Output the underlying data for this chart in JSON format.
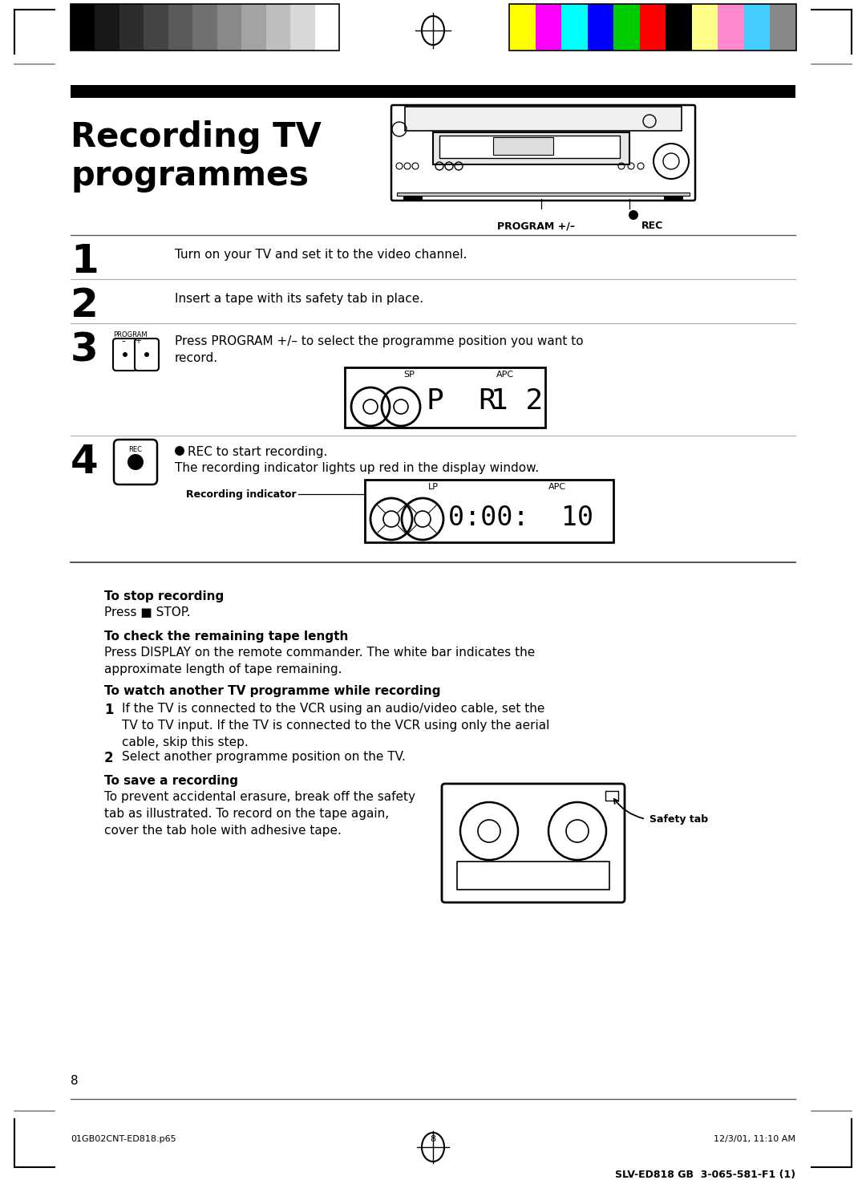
{
  "bg_color": "#ffffff",
  "title_line1": "Recording TV",
  "title_line2": "programmes",
  "step1_text": "Turn on your TV and set it to the video channel.",
  "step2_text": "Insert a tape with its safety tab in place.",
  "step3_text": "Press PROGRAM +/– to select the programme position you want to\nrecord.",
  "step4_text1": "Press ● REC to start recording.",
  "step4_text2": "The recording indicator lights up red in the display window.",
  "recording_indicator_label": "Recording indicator",
  "stop_heading": "To stop recording",
  "stop_body": "Press ■ STOP.",
  "check_heading": "To check the remaining tape length",
  "check_body": "Press DISPLAY on the remote commander. The white bar indicates the\napproximate length of tape remaining.",
  "watch_heading": "To watch another TV programme while recording",
  "watch_body1": "If the TV is connected to the VCR using an audio/video cable, set the\nTV to TV input. If the TV is connected to the VCR using only the aerial\ncable, skip this step.",
  "watch_body2": "Select another programme position on the TV.",
  "save_heading": "To save a recording",
  "save_body": "To prevent accidental erasure, break off the safety\ntab as illustrated. To record on the tape again,\ncover the tab hole with adhesive tape.",
  "safety_tab_label": "Safety tab",
  "page_number": "8",
  "footer_left": "01GB02CNT-ED818.p65",
  "footer_center": "8",
  "footer_right": "12/3/01, 11:10 AM",
  "footer_bottom": "SLV-ED818 GB  3-065-581-F1 (1)",
  "gray_colors": [
    "#000000",
    "#181818",
    "#2d2d2d",
    "#444444",
    "#5a5a5a",
    "#707070",
    "#898989",
    "#a3a3a3",
    "#bebebe",
    "#d8d8d8",
    "#ffffff"
  ],
  "color_bars": [
    "#ffff00",
    "#ff00ff",
    "#00ffff",
    "#0000ff",
    "#00cc00",
    "#ff0000",
    "#000000",
    "#ffff88",
    "#ff88cc",
    "#44ccff",
    "#888888"
  ]
}
